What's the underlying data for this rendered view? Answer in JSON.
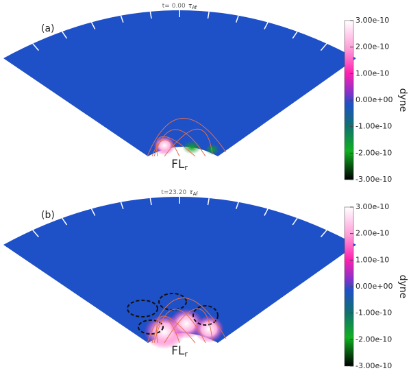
{
  "chart_data": [
    {
      "type": "image",
      "panel_label": "(a)",
      "time": "t= 0.00",
      "time_symbol": "τ",
      "time_subscript": "Af",
      "annotation": "FL",
      "annotation_subscript": "r",
      "colorbar_label": "dyne",
      "zlim": [
        -3e-10,
        3e-10
      ],
      "zticks": [
        {
          "value": 3e-10,
          "label": "3.00e-10"
        },
        {
          "value": 2e-10,
          "label": "2.00e-10"
        },
        {
          "value": 1e-10,
          "label": "1.00e-10"
        },
        {
          "value": 0,
          "label": "0.00e+00"
        },
        {
          "value": -1e-10,
          "label": "-1.00e-10"
        },
        {
          "value": -2e-10,
          "label": "-2.00e-10"
        },
        {
          "value": -3e-10,
          "label": "-3.00e-10"
        }
      ]
    },
    {
      "type": "image",
      "panel_label": "(b)",
      "time": "t=23.20",
      "time_symbol": "τ",
      "time_subscript": "Af",
      "annotation": "FL",
      "annotation_subscript": "r",
      "colorbar_label": "dyne",
      "zlim": [
        -3e-10,
        3e-10
      ],
      "zticks": [
        {
          "value": 3e-10,
          "label": "3.00e-10"
        },
        {
          "value": 2e-10,
          "label": "2.00e-10"
        },
        {
          "value": 1e-10,
          "label": "1.00e-10"
        },
        {
          "value": 0,
          "label": "0.00e+00"
        },
        {
          "value": -1e-10,
          "label": "-1.00e-10"
        },
        {
          "value": -2e-10,
          "label": "-2.00e-10"
        },
        {
          "value": -3e-10,
          "label": "-3.00e-10"
        }
      ]
    }
  ]
}
